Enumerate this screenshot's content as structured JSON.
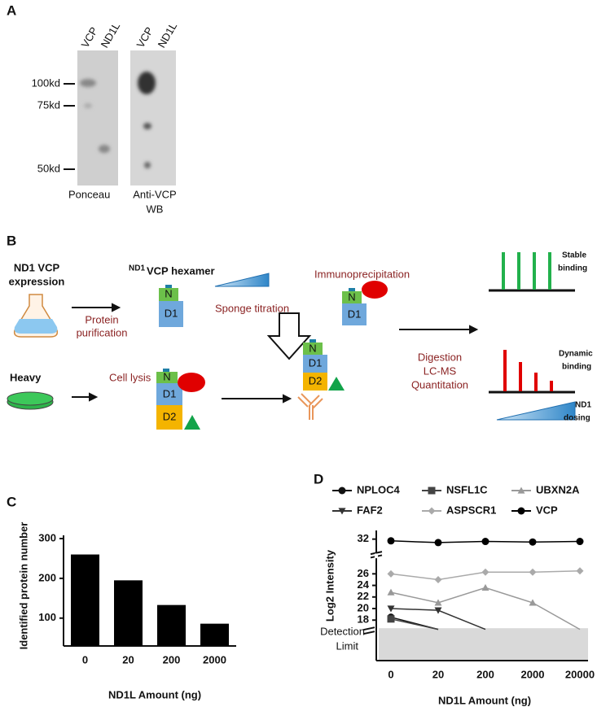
{
  "panel_a": {
    "label": "A",
    "lanes": [
      "VCP",
      "ND1L",
      "VCP",
      "ND1L"
    ],
    "markers": [
      "100kd",
      "75kd",
      "50kd"
    ],
    "captions": [
      [
        "Ponceau"
      ],
      [
        "Anti-VCP",
        "WB"
      ]
    ]
  },
  "panel_b": {
    "label": "B",
    "expression": [
      "ND1 VCP",
      "expression"
    ],
    "purification": [
      "Protein",
      "purification"
    ],
    "hexamer_sup": "ND1",
    "hexamer": "VCP hexamer",
    "titration": "Sponge titration",
    "ip": "Immunoprecipitation",
    "heavy": "Heavy",
    "lysis": "Cell lysis",
    "domains": [
      "N",
      "D1",
      "D2"
    ],
    "ms": [
      "Digestion",
      "LC-MS",
      "Quantitation"
    ],
    "stable": [
      "Stable",
      "binding"
    ],
    "dynamic": [
      "Dynamic",
      "binding"
    ],
    "dosing": [
      "ND1",
      "dosing"
    ]
  },
  "chart_data": [
    {
      "type": "bar",
      "panel": "C",
      "x_label": "ND1L Amount (ng)",
      "y_label": "Identified protein number",
      "categories": [
        "0",
        "20",
        "200",
        "2000"
      ],
      "values": [
        260,
        195,
        133,
        86
      ],
      "color": "#000000",
      "ylim": [
        30,
        300
      ],
      "yticks": [
        100,
        200,
        300
      ]
    },
    {
      "type": "line",
      "panel": "D",
      "x_label": "ND1L Amount (ng)",
      "y_label": "Log2 Intensity",
      "categories": [
        "0",
        "20",
        "200",
        "2000",
        "20000"
      ],
      "ylim": [
        11,
        33.5
      ],
      "yticks": [
        18,
        20,
        22,
        24,
        26,
        32
      ],
      "detection_limit": {
        "value": 16.6,
        "label": [
          "Detection",
          "Limit"
        ]
      },
      "series": [
        {
          "name": "NPLOC4",
          "color": "#111111",
          "marker": "circle",
          "values": [
            18.5,
            16.4,
            null,
            null,
            null
          ]
        },
        {
          "name": "NSFL1C",
          "color": "#444444",
          "marker": "square",
          "values": [
            18.2,
            16.4,
            null,
            null,
            null
          ]
        },
        {
          "name": "UBXN2A",
          "color": "#999999",
          "marker": "triangle",
          "values": [
            22.8,
            21,
            23.6,
            21,
            16.4
          ]
        },
        {
          "name": "FAF2",
          "color": "#333333",
          "marker": "triangle-down",
          "values": [
            20,
            19.7,
            16.4,
            null,
            null
          ]
        },
        {
          "name": "ASPSCR1",
          "color": "#aaaaaa",
          "marker": "diamond",
          "values": [
            26,
            25,
            26.3,
            26.3,
            26.5
          ]
        },
        {
          "name": "VCP",
          "color": "#000000",
          "marker": "circle",
          "values": [
            31.7,
            31.4,
            31.6,
            31.5,
            31.6
          ]
        }
      ]
    }
  ]
}
